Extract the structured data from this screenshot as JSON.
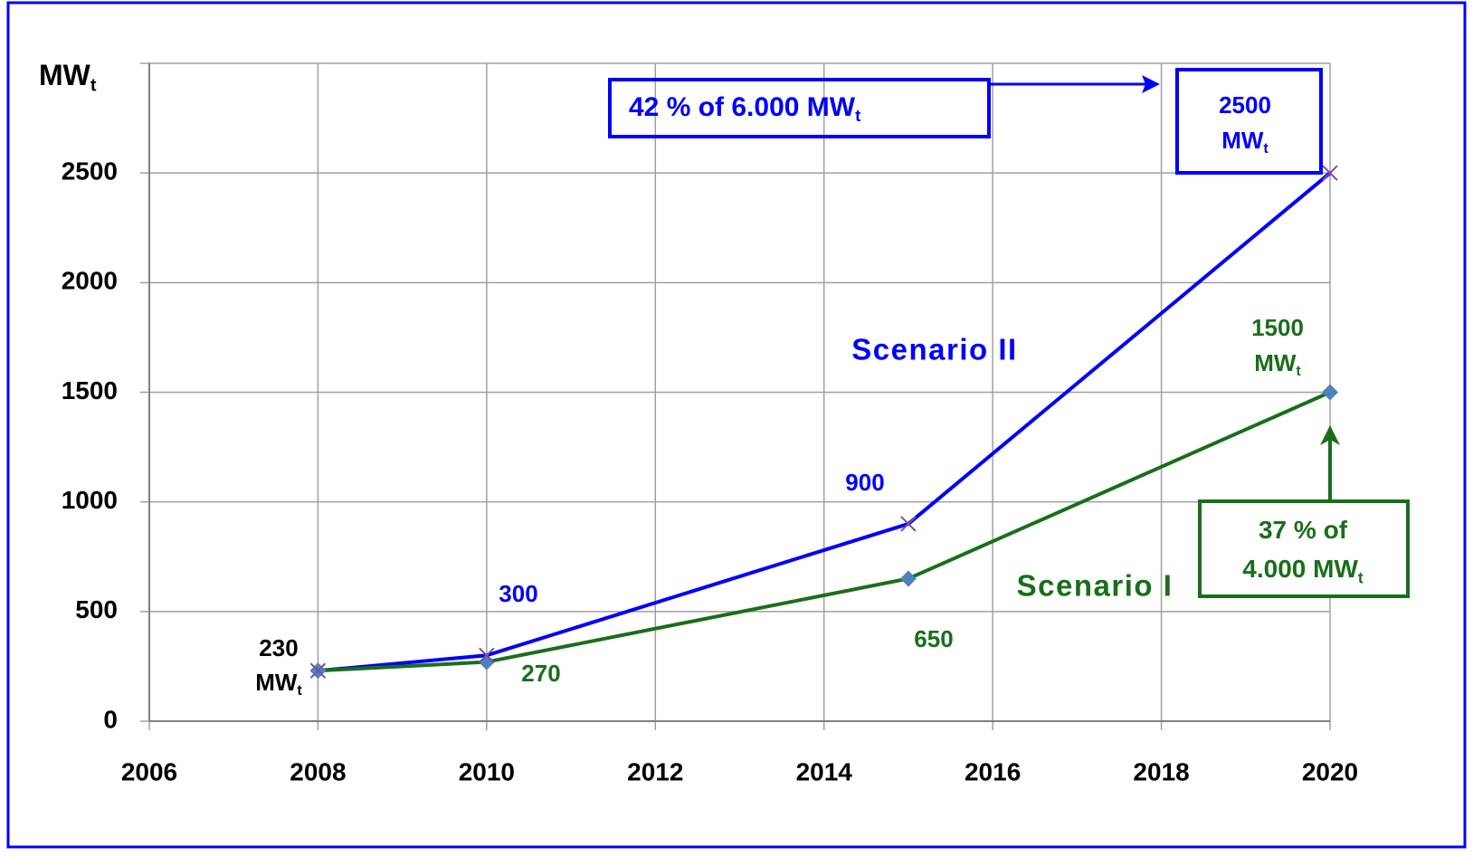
{
  "chart_data": {
    "type": "line",
    "y_label": {
      "text": "MW",
      "sub": "t"
    },
    "x": [
      2008,
      2010,
      2015,
      2020
    ],
    "series": [
      {
        "name": "Scenario II",
        "color": "#0000ff",
        "marker": "cross",
        "marker_color": "#7b4fa0",
        "values": [
          230,
          300,
          900,
          2500
        ],
        "value_labels": [
          null,
          "300",
          "900",
          {
            "lines": [
              "2500",
              "MW"
            ],
            "sub": "t"
          }
        ]
      },
      {
        "name": "Scenario I",
        "color": "#1a6e1a",
        "marker": "diamond",
        "marker_color": "#4f81bd",
        "values": [
          230,
          270,
          650,
          1500
        ],
        "value_labels": [
          {
            "lines": [
              "230",
              "MW"
            ],
            "sub": "t"
          },
          "270",
          "650",
          {
            "lines": [
              "1500",
              "MW"
            ],
            "sub": "t"
          }
        ]
      }
    ],
    "annotations": [
      {
        "lines": [
          "42 % of 6.000 MW"
        ],
        "sub": "t",
        "color": "#0000ff"
      },
      {
        "lines": [
          "37 %  of",
          "4.000 MW"
        ],
        "sub": "t",
        "color": "#1a6e1a"
      }
    ],
    "xlim": [
      2006,
      2020
    ],
    "xticks": [
      2006,
      2008,
      2010,
      2012,
      2014,
      2016,
      2018,
      2020
    ],
    "ylim": [
      0,
      3000
    ],
    "yticks": [
      0,
      500,
      1000,
      1500,
      2000,
      2500
    ],
    "grid": true
  }
}
